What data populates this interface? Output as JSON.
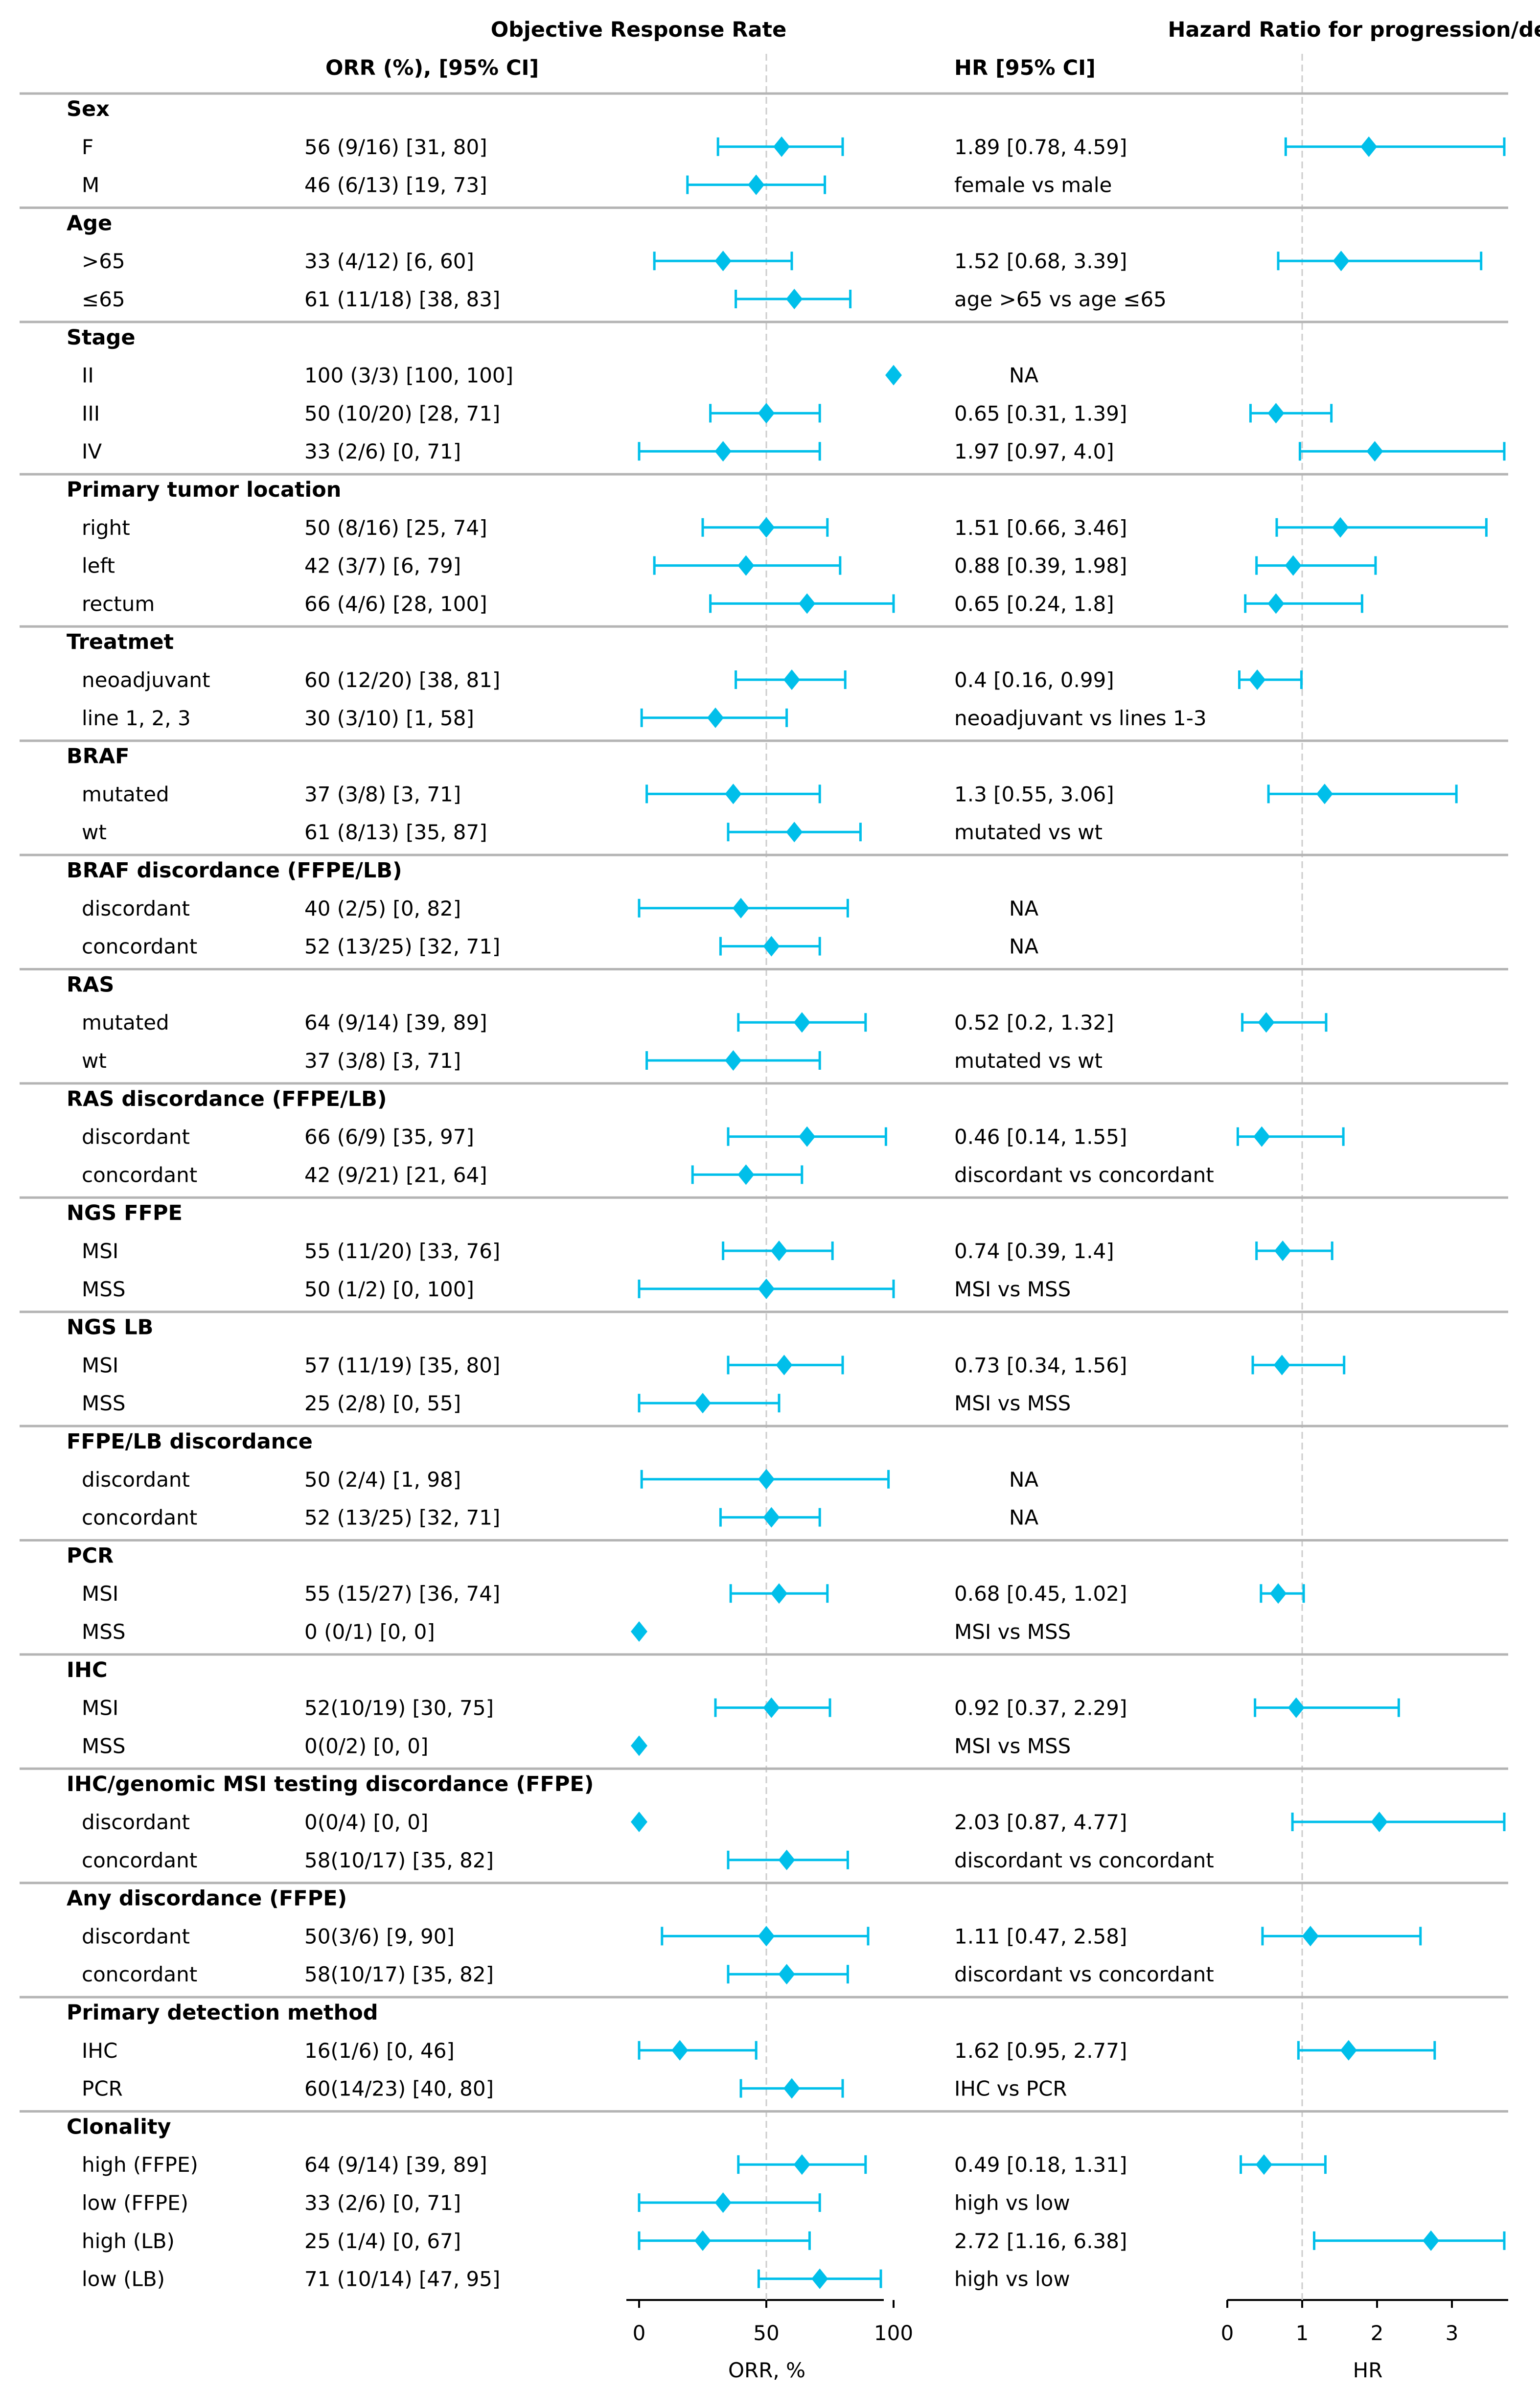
{
  "chart_data": {
    "type": "forest",
    "headers": {
      "orr_title": "Objective Response Rate",
      "hr_title": "Hazard Ratio for progression/death",
      "orr_column": "ORR (%), [95% CI]",
      "hr_column": "HR [95% CI]"
    },
    "axes": {
      "orr": {
        "xlabel": "ORR, %",
        "xlim": [
          -5,
          105
        ],
        "ticks": [
          0,
          50,
          100
        ],
        "reference": 50
      },
      "hr": {
        "xlabel": "HR",
        "xlim": [
          0,
          3.7
        ],
        "ticks": [
          0,
          1,
          2,
          3
        ],
        "reference": 1
      }
    },
    "colors": {
      "marker": "#00BFEA",
      "separator": "#b4b4b4",
      "reference_line": "#cccccc",
      "axis": "#000000"
    },
    "groups": [
      {
        "title": "Sex",
        "rows": [
          {
            "label": "F",
            "orr_text": "56 (9/16) [31, 80]",
            "orr": 56,
            "orr_lo": 31,
            "orr_hi": 80,
            "hr_text": "1.89 [0.78, 4.59]",
            "hr": 1.89,
            "hr_lo": 0.78,
            "hr_hi": 4.59
          },
          {
            "label": "M",
            "orr_text": "46 (6/13) [19, 73]",
            "orr": 46,
            "orr_lo": 19,
            "orr_hi": 73,
            "hr_text": "female vs male"
          }
        ]
      },
      {
        "title": "Age",
        "rows": [
          {
            "label": ">65",
            "orr_text": "33 (4/12) [6, 60]",
            "orr": 33,
            "orr_lo": 6,
            "orr_hi": 60,
            "hr_text": "1.52 [0.68, 3.39]",
            "hr": 1.52,
            "hr_lo": 0.68,
            "hr_hi": 3.39
          },
          {
            "label": "≤65",
            "orr_text": "61 (11/18) [38, 83]",
            "orr": 61,
            "orr_lo": 38,
            "orr_hi": 83,
            "hr_text": "age >65 vs age ≤65"
          }
        ]
      },
      {
        "title": "Stage",
        "rows": [
          {
            "label": "II",
            "orr_text": "100 (3/3) [100, 100]",
            "orr": 100,
            "orr_lo": 100,
            "orr_hi": 100,
            "hr_text": "NA"
          },
          {
            "label": "III",
            "orr_text": "50 (10/20) [28, 71]",
            "orr": 50,
            "orr_lo": 28,
            "orr_hi": 71,
            "hr_text": "0.65 [0.31, 1.39]",
            "hr": 0.65,
            "hr_lo": 0.31,
            "hr_hi": 1.39
          },
          {
            "label": "IV",
            "orr_text": "33 (2/6) [0, 71]",
            "orr": 33,
            "orr_lo": 0,
            "orr_hi": 71,
            "hr_text": "1.97 [0.97, 4.0]",
            "hr": 1.97,
            "hr_lo": 0.97,
            "hr_hi": 4.0
          }
        ]
      },
      {
        "title": "Primary tumor location",
        "rows": [
          {
            "label": "right",
            "orr_text": "50 (8/16) [25, 74]",
            "orr": 50,
            "orr_lo": 25,
            "orr_hi": 74,
            "hr_text": "1.51 [0.66, 3.46]",
            "hr": 1.51,
            "hr_lo": 0.66,
            "hr_hi": 3.46
          },
          {
            "label": "left",
            "orr_text": "42 (3/7) [6, 79]",
            "orr": 42,
            "orr_lo": 6,
            "orr_hi": 79,
            "hr_text": "0.88 [0.39, 1.98]",
            "hr": 0.88,
            "hr_lo": 0.39,
            "hr_hi": 1.98
          },
          {
            "label": "rectum",
            "orr_text": "66 (4/6) [28, 100]",
            "orr": 66,
            "orr_lo": 28,
            "orr_hi": 100,
            "hr_text": "0.65 [0.24, 1.8]",
            "hr": 0.65,
            "hr_lo": 0.24,
            "hr_hi": 1.8
          }
        ]
      },
      {
        "title": "Treatmet",
        "rows": [
          {
            "label": "neoadjuvant",
            "orr_text": "60 (12/20) [38, 81]",
            "orr": 60,
            "orr_lo": 38,
            "orr_hi": 81,
            "hr_text": "0.4 [0.16, 0.99]",
            "hr": 0.4,
            "hr_lo": 0.16,
            "hr_hi": 0.99
          },
          {
            "label": "line 1, 2, 3",
            "orr_text": "30 (3/10) [1, 58]",
            "orr": 30,
            "orr_lo": 1,
            "orr_hi": 58,
            "hr_text": "neoadjuvant vs lines 1-3"
          }
        ]
      },
      {
        "title": "BRAF",
        "rows": [
          {
            "label": "mutated",
            "orr_text": "37 (3/8) [3, 71]",
            "orr": 37,
            "orr_lo": 3,
            "orr_hi": 71,
            "hr_text": "1.3 [0.55, 3.06]",
            "hr": 1.3,
            "hr_lo": 0.55,
            "hr_hi": 3.06
          },
          {
            "label": "wt",
            "orr_text": "61 (8/13) [35, 87]",
            "orr": 61,
            "orr_lo": 35,
            "orr_hi": 87,
            "hr_text": "mutated vs wt"
          }
        ]
      },
      {
        "title": "BRAF discordance (FFPE/LB)",
        "rows": [
          {
            "label": "discordant",
            "orr_text": "40 (2/5) [0, 82]",
            "orr": 40,
            "orr_lo": 0,
            "orr_hi": 82,
            "hr_text": "NA"
          },
          {
            "label": "concordant",
            "orr_text": "52 (13/25) [32, 71]",
            "orr": 52,
            "orr_lo": 32,
            "orr_hi": 71,
            "hr_text": "NA"
          }
        ]
      },
      {
        "title": "RAS",
        "rows": [
          {
            "label": "mutated",
            "orr_text": "64 (9/14) [39, 89]",
            "orr": 64,
            "orr_lo": 39,
            "orr_hi": 89,
            "hr_text": "0.52 [0.2, 1.32]",
            "hr": 0.52,
            "hr_lo": 0.2,
            "hr_hi": 1.32
          },
          {
            "label": "wt",
            "orr_text": "37 (3/8) [3, 71]",
            "orr": 37,
            "orr_lo": 3,
            "orr_hi": 71,
            "hr_text": "mutated vs wt"
          }
        ]
      },
      {
        "title": "RAS discordance (FFPE/LB)",
        "rows": [
          {
            "label": "discordant",
            "orr_text": "66 (6/9) [35, 97]",
            "orr": 66,
            "orr_lo": 35,
            "orr_hi": 97,
            "hr_text": "0.46 [0.14, 1.55]",
            "hr": 0.46,
            "hr_lo": 0.14,
            "hr_hi": 1.55
          },
          {
            "label": "concordant",
            "orr_text": "42 (9/21) [21, 64]",
            "orr": 42,
            "orr_lo": 21,
            "orr_hi": 64,
            "hr_text": "discordant vs concordant"
          }
        ]
      },
      {
        "title": "NGS FFPE",
        "rows": [
          {
            "label": "MSI",
            "orr_text": "55 (11/20) [33, 76]",
            "orr": 55,
            "orr_lo": 33,
            "orr_hi": 76,
            "hr_text": "0.74 [0.39, 1.4]",
            "hr": 0.74,
            "hr_lo": 0.39,
            "hr_hi": 1.4
          },
          {
            "label": "MSS",
            "orr_text": "50 (1/2) [0, 100]",
            "orr": 50,
            "orr_lo": 0,
            "orr_hi": 100,
            "hr_text": "MSI vs MSS"
          }
        ]
      },
      {
        "title": "NGS LB",
        "rows": [
          {
            "label": "MSI",
            "orr_text": "57 (11/19) [35, 80]",
            "orr": 57,
            "orr_lo": 35,
            "orr_hi": 80,
            "hr_text": "0.73 [0.34, 1.56]",
            "hr": 0.73,
            "hr_lo": 0.34,
            "hr_hi": 1.56
          },
          {
            "label": "MSS",
            "orr_text": "25 (2/8) [0, 55]",
            "orr": 25,
            "orr_lo": 0,
            "orr_hi": 55,
            "hr_text": "MSI vs MSS"
          }
        ]
      },
      {
        "title": "FFPE/LB discordance",
        "rows": [
          {
            "label": "discordant",
            "orr_text": "50 (2/4) [1, 98]",
            "orr": 50,
            "orr_lo": 1,
            "orr_hi": 98,
            "hr_text": "NA"
          },
          {
            "label": "concordant",
            "orr_text": "52 (13/25) [32, 71]",
            "orr": 52,
            "orr_lo": 32,
            "orr_hi": 71,
            "hr_text": "NA"
          }
        ]
      },
      {
        "title": "PCR",
        "rows": [
          {
            "label": "MSI",
            "orr_text": "55 (15/27) [36, 74]",
            "orr": 55,
            "orr_lo": 36,
            "orr_hi": 74,
            "hr_text": "0.68 [0.45, 1.02]",
            "hr": 0.68,
            "hr_lo": 0.45,
            "hr_hi": 1.02
          },
          {
            "label": "MSS",
            "orr_text": "0 (0/1) [0, 0]",
            "orr": 0,
            "orr_lo": 0,
            "orr_hi": 0,
            "hr_text": "MSI vs MSS"
          }
        ]
      },
      {
        "title": "IHC",
        "rows": [
          {
            "label": "MSI",
            "orr_text": "52(10/19) [30, 75]",
            "orr": 52,
            "orr_lo": 30,
            "orr_hi": 75,
            "hr_text": "0.92 [0.37, 2.29]",
            "hr": 0.92,
            "hr_lo": 0.37,
            "hr_hi": 2.29
          },
          {
            "label": "MSS",
            "orr_text": "0(0/2) [0, 0]",
            "orr": 0,
            "orr_lo": 0,
            "orr_hi": 0,
            "hr_text": "MSI vs MSS"
          }
        ]
      },
      {
        "title": "IHC/genomic MSI testing discordance (FFPE)",
        "rows": [
          {
            "label": "discordant",
            "orr_text": "0(0/4) [0, 0]",
            "orr": 0,
            "orr_lo": 0,
            "orr_hi": 0,
            "hr_text": "2.03 [0.87, 4.77]",
            "hr": 2.03,
            "hr_lo": 0.87,
            "hr_hi": 4.77
          },
          {
            "label": "concordant",
            "orr_text": "58(10/17) [35, 82]",
            "orr": 58,
            "orr_lo": 35,
            "orr_hi": 82,
            "hr_text": "discordant vs concordant"
          }
        ]
      },
      {
        "title": "Any discordance (FFPE)",
        "rows": [
          {
            "label": "discordant",
            "orr_text": "50(3/6) [9, 90]",
            "orr": 50,
            "orr_lo": 9,
            "orr_hi": 90,
            "hr_text": "1.11 [0.47, 2.58]",
            "hr": 1.11,
            "hr_lo": 0.47,
            "hr_hi": 2.58
          },
          {
            "label": "concordant",
            "orr_text": "58(10/17) [35, 82]",
            "orr": 58,
            "orr_lo": 35,
            "orr_hi": 82,
            "hr_text": "discordant vs concordant"
          }
        ]
      },
      {
        "title": "Primary detection method",
        "rows": [
          {
            "label": "IHC",
            "orr_text": "16(1/6) [0, 46]",
            "orr": 16,
            "orr_lo": 0,
            "orr_hi": 46,
            "hr_text": "1.62 [0.95, 2.77]",
            "hr": 1.62,
            "hr_lo": 0.95,
            "hr_hi": 2.77
          },
          {
            "label": "PCR",
            "orr_text": "60(14/23) [40, 80]",
            "orr": 60,
            "orr_lo": 40,
            "orr_hi": 80,
            "hr_text": "IHC vs PCR"
          }
        ]
      },
      {
        "title": "Clonality",
        "rows": [
          {
            "label": "high (FFPE)",
            "orr_text": "64 (9/14) [39, 89]",
            "orr": 64,
            "orr_lo": 39,
            "orr_hi": 89,
            "hr_text": "0.49 [0.18, 1.31]",
            "hr": 0.49,
            "hr_lo": 0.18,
            "hr_hi": 1.31
          },
          {
            "label": "low (FFPE)",
            "orr_text": "33 (2/6) [0, 71]",
            "orr": 33,
            "orr_lo": 0,
            "orr_hi": 71,
            "hr_text": "high vs low"
          },
          {
            "label": "high (LB)",
            "orr_text": "25 (1/4) [0, 67]",
            "orr": 25,
            "orr_lo": 0,
            "orr_hi": 67,
            "hr_text": "2.72 [1.16, 6.38]",
            "hr": 2.72,
            "hr_lo": 1.16,
            "hr_hi": 6.38
          },
          {
            "label": "low (LB)",
            "orr_text": "71 (10/14) [47, 95]",
            "orr": 71,
            "orr_lo": 47,
            "orr_hi": 95,
            "hr_text": "high vs low"
          }
        ]
      }
    ]
  }
}
